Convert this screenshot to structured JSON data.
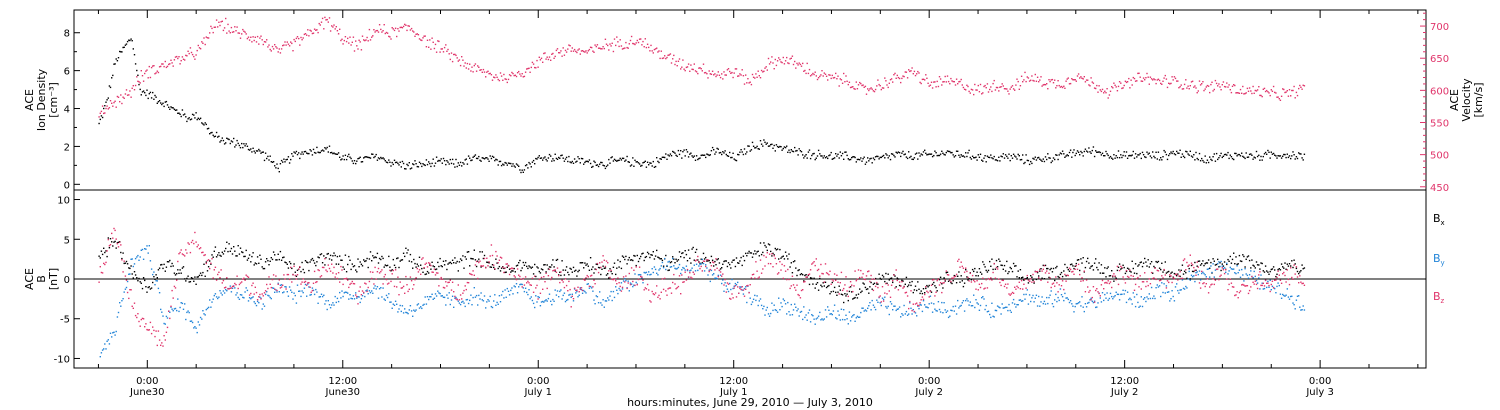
{
  "chart_data": [
    {
      "type": "scatter",
      "panel": "top",
      "left_axis": {
        "label_lines": [
          "ACE",
          "Ion Density",
          "[cm⁻³]"
        ],
        "ylim": [
          -0.3,
          9.2
        ],
        "ticks": [
          "0",
          "2",
          "4",
          "6",
          "8"
        ],
        "tick_values": [
          0,
          2,
          4,
          6,
          8
        ],
        "color": "#000000"
      },
      "right_axis": {
        "label_lines": [
          "ACE",
          "Velocity",
          "[km/s]"
        ],
        "ylim": [
          445,
          725
        ],
        "ticks": [
          "450",
          "500",
          "550",
          "600",
          "650",
          "700"
        ],
        "tick_values": [
          450,
          500,
          550,
          600,
          650,
          700
        ],
        "color": "#e0356b"
      },
      "series": [
        {
          "color": "#000000",
          "axis": "left",
          "x_hours": [
            -3,
            -2.5,
            -2,
            -1.5,
            -1,
            -0.5,
            0,
            0.5,
            1,
            1.5,
            2,
            2.5,
            3,
            3.5,
            4,
            4.5,
            5,
            5.5,
            6,
            7,
            8,
            9,
            10,
            11,
            12,
            13,
            14,
            15,
            16,
            17,
            18,
            19,
            20,
            21,
            22,
            23,
            24,
            25,
            26,
            27,
            28,
            29,
            30,
            31,
            32,
            33,
            34,
            35,
            36,
            37,
            38,
            39,
            40,
            41,
            42,
            43,
            44,
            45,
            46,
            47,
            48,
            49,
            50,
            51,
            52,
            53,
            54,
            55,
            56,
            57,
            58,
            59,
            60,
            61,
            62,
            63,
            64,
            65,
            66,
            67,
            68,
            69,
            70,
            71
          ],
          "y": [
            3.2,
            4.5,
            6.5,
            7.2,
            7.8,
            5.0,
            4.8,
            4.6,
            4.3,
            4.0,
            3.8,
            3.5,
            3.7,
            3.2,
            2.6,
            2.4,
            2.3,
            2.2,
            2.0,
            1.7,
            0.9,
            1.6,
            1.8,
            1.9,
            1.4,
            1.3,
            1.5,
            1.2,
            1.0,
            1.1,
            1.2,
            1.1,
            1.4,
            1.3,
            1.2,
            0.9,
            1.4,
            1.5,
            1.3,
            1.2,
            1.1,
            1.3,
            1.2,
            1.1,
            1.6,
            1.7,
            1.5,
            1.8,
            1.4,
            2.0,
            2.2,
            1.9,
            1.7,
            1.6,
            1.5,
            1.5,
            1.3,
            1.4,
            1.6,
            1.5,
            1.6,
            1.7,
            1.6,
            1.5,
            1.4,
            1.5,
            1.3,
            1.4,
            1.5,
            1.7,
            1.8,
            1.6,
            1.5,
            1.6,
            1.5,
            1.7,
            1.6,
            1.4,
            1.5,
            1.6,
            1.5,
            1.6,
            1.6,
            1.5
          ]
        },
        {
          "color": "#e0356b",
          "axis": "right",
          "x_hours": [
            -3,
            -2.5,
            -2,
            -1.5,
            -1,
            -0.5,
            0,
            0.5,
            1,
            1.5,
            2,
            2.5,
            3,
            3.5,
            4,
            4.5,
            5,
            5.5,
            6,
            7,
            8,
            9,
            10,
            11,
            12,
            13,
            14,
            15,
            16,
            17,
            18,
            19,
            20,
            21,
            22,
            23,
            24,
            25,
            26,
            27,
            28,
            29,
            30,
            31,
            32,
            33,
            34,
            35,
            36,
            37,
            38,
            39,
            40,
            41,
            42,
            43,
            44,
            45,
            46,
            47,
            48,
            49,
            50,
            51,
            52,
            53,
            54,
            55,
            56,
            57,
            58,
            59,
            60,
            61,
            62,
            63,
            64,
            65,
            66,
            67,
            68,
            69,
            70,
            71
          ],
          "y": [
            560,
            575,
            585,
            590,
            600,
            620,
            630,
            635,
            640,
            645,
            650,
            655,
            660,
            675,
            700,
            705,
            698,
            690,
            688,
            680,
            660,
            675,
            690,
            710,
            680,
            670,
            695,
            690,
            700,
            680,
            665,
            650,
            635,
            625,
            620,
            630,
            645,
            660,
            665,
            660,
            670,
            675,
            680,
            665,
            650,
            640,
            635,
            625,
            630,
            615,
            640,
            650,
            640,
            625,
            620,
            615,
            600,
            610,
            620,
            630,
            610,
            615,
            610,
            600,
            610,
            605,
            620,
            615,
            610,
            625,
            610,
            600,
            610,
            620,
            615,
            615,
            610,
            605,
            610,
            600,
            600,
            595,
            595,
            605
          ]
        }
      ]
    },
    {
      "type": "scatter",
      "panel": "bottom",
      "left_axis": {
        "label_lines": [
          "ACE",
          "B",
          "[nT]"
        ],
        "ylim": [
          -11.2,
          11.2
        ],
        "ticks": [
          "-10",
          "-5",
          "0",
          "5",
          "10"
        ],
        "tick_values": [
          -10,
          -5,
          0,
          5,
          10
        ]
      },
      "legend": [
        {
          "main": "B",
          "sub": "x",
          "color": "#000000"
        },
        {
          "main": "B",
          "sub": "y",
          "color": "#2385d8"
        },
        {
          "main": "B",
          "sub": "z",
          "color": "#e0356b"
        }
      ],
      "series": [
        {
          "color": "#000000",
          "x_hours": [
            -3,
            -2,
            -1,
            0,
            1,
            2,
            3,
            4,
            5,
            6,
            7,
            8,
            9,
            10,
            11,
            12,
            13,
            14,
            15,
            16,
            17,
            18,
            19,
            20,
            21,
            22,
            23,
            24,
            25,
            26,
            27,
            28,
            29,
            30,
            31,
            32,
            33,
            34,
            35,
            36,
            37,
            38,
            39,
            40,
            41,
            42,
            43,
            44,
            45,
            46,
            47,
            48,
            49,
            50,
            51,
            52,
            53,
            54,
            55,
            56,
            57,
            58,
            59,
            60,
            61,
            62,
            63,
            64,
            65,
            66,
            67,
            68,
            69,
            70,
            71
          ],
          "y": [
            3,
            5,
            1,
            -1,
            2,
            1,
            0,
            3,
            4,
            3,
            2,
            3,
            1,
            2,
            3,
            2,
            2,
            3,
            2,
            3,
            1,
            2,
            2,
            3,
            2,
            1,
            2,
            1,
            2,
            1,
            2,
            1,
            2,
            3,
            3,
            2,
            3,
            3,
            2,
            2,
            3,
            4,
            3,
            1,
            0,
            -1,
            -2,
            -1,
            0,
            0,
            -1,
            -1,
            0,
            0,
            1,
            2,
            1,
            0,
            1,
            1,
            2,
            2,
            1,
            1,
            2,
            2,
            1,
            1,
            2,
            2,
            3,
            2,
            1,
            2,
            1
          ]
        },
        {
          "color": "#2385d8",
          "x_hours": [
            -3,
            -2,
            -1,
            0,
            1,
            2,
            3,
            4,
            5,
            6,
            7,
            8,
            9,
            10,
            11,
            12,
            13,
            14,
            15,
            16,
            17,
            18,
            19,
            20,
            21,
            22,
            23,
            24,
            25,
            26,
            27,
            28,
            29,
            30,
            31,
            32,
            33,
            34,
            35,
            36,
            37,
            38,
            39,
            40,
            41,
            42,
            43,
            44,
            45,
            46,
            47,
            48,
            49,
            50,
            51,
            52,
            53,
            54,
            55,
            56,
            57,
            58,
            59,
            60,
            61,
            62,
            63,
            64,
            65,
            66,
            67,
            68,
            69,
            70,
            71
          ],
          "y": [
            -10,
            -6,
            2,
            4,
            -5,
            -3,
            -6,
            -2,
            -1,
            -2,
            -3,
            -1,
            -2,
            -1,
            -3,
            -2,
            -2,
            -1,
            -3,
            -4,
            -3,
            -2,
            -3,
            -2,
            -3,
            -2,
            -1,
            -3,
            -2,
            -2,
            -1,
            -3,
            -1,
            0,
            1,
            2,
            1,
            2,
            0,
            -1,
            -2,
            -4,
            -3,
            -4,
            -5,
            -4,
            -5,
            -4,
            -3,
            -4,
            -4,
            -3,
            -4,
            -3,
            -3,
            -4,
            -3,
            -2,
            -3,
            -2,
            -3,
            -3,
            -2,
            -2,
            -3,
            -1,
            -2,
            0,
            1,
            2,
            1,
            0,
            -1,
            -2,
            -3
          ]
        },
        {
          "color": "#e0356b",
          "x_hours": [
            -3,
            -2,
            -1,
            0,
            1,
            2,
            3,
            4,
            5,
            6,
            7,
            8,
            9,
            10,
            11,
            12,
            13,
            14,
            15,
            16,
            17,
            18,
            19,
            20,
            21,
            22,
            23,
            24,
            25,
            26,
            27,
            28,
            29,
            30,
            31,
            32,
            33,
            34,
            35,
            36,
            37,
            38,
            39,
            40,
            41,
            42,
            43,
            44,
            45,
            46,
            47,
            48,
            49,
            50,
            51,
            52,
            53,
            54,
            55,
            56,
            57,
            58,
            59,
            60,
            61,
            62,
            63,
            64,
            65,
            66,
            67,
            68,
            69,
            70,
            71
          ],
          "y": [
            0,
            7,
            -3,
            -6,
            -8,
            3,
            5,
            1,
            -1,
            0,
            -2,
            0,
            1,
            -1,
            2,
            0,
            -2,
            1,
            0,
            -1,
            2,
            0,
            -2,
            1,
            3,
            2,
            0,
            -1,
            1,
            -2,
            0,
            2,
            -1,
            1,
            -2,
            -1,
            0,
            2,
            1,
            -2,
            0,
            3,
            1,
            -1,
            2,
            0,
            -1,
            1,
            -2,
            0,
            -3,
            -1,
            0,
            2,
            -1,
            1,
            -2,
            0,
            1,
            -1,
            2,
            -2,
            0,
            1,
            -1,
            1,
            0,
            2,
            -1,
            1,
            -2,
            0,
            -1,
            1,
            0
          ]
        }
      ]
    }
  ],
  "x_axis": {
    "range_hours": [
      -4.5,
      78.5
    ],
    "major_ticks": [
      {
        "hour": 0,
        "time": "0:00",
        "day": "June30"
      },
      {
        "hour": 12,
        "time": "12:00",
        "day": "June30"
      },
      {
        "hour": 24,
        "time": "0:00",
        "day": "July 1"
      },
      {
        "hour": 36,
        "time": "12:00",
        "day": "July 1"
      },
      {
        "hour": 48,
        "time": "0:00",
        "day": "July 2"
      },
      {
        "hour": 60,
        "time": "12:00",
        "day": "July 2"
      },
      {
        "hour": 72,
        "time": "0:00",
        "day": "July 3"
      }
    ],
    "title": "hours:minutes, June 29, 2010 — July  3, 2010"
  }
}
